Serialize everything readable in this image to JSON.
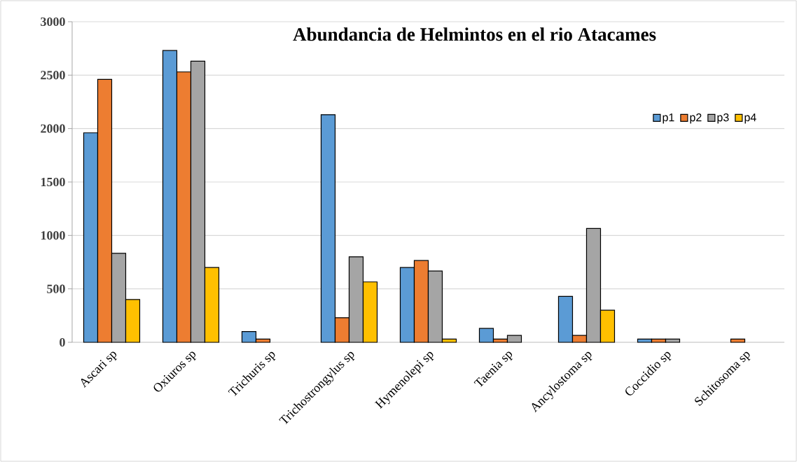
{
  "chart_data": {
    "type": "bar",
    "title": "Abundancia de Helmintos en el rio Atacames",
    "categories": [
      "Ascari sp",
      "Oxiuros sp",
      "Trichuris sp",
      "Trichostrongylus sp",
      "Hymenolepi sp",
      "Taenia sp",
      "Ancylostoma sp",
      "Coccidio sp",
      "Schitosoma sp"
    ],
    "series": [
      {
        "name": "p1",
        "color": "#5b9bd5",
        "values": [
          1960,
          2730,
          100,
          2130,
          700,
          130,
          430,
          30,
          null
        ]
      },
      {
        "name": "p2",
        "color": "#ed7d31",
        "values": [
          2460,
          2530,
          30,
          230,
          765,
          30,
          65,
          30,
          30
        ]
      },
      {
        "name": "p3",
        "color": "#a5a5a5",
        "values": [
          833,
          2630,
          null,
          800,
          667,
          65,
          1065,
          30,
          null
        ]
      },
      {
        "name": "p4",
        "color": "#ffc000",
        "values": [
          400,
          700,
          null,
          565,
          30,
          null,
          300,
          null,
          null
        ]
      }
    ],
    "ylim": [
      0,
      3000
    ],
    "yticks": [
      0,
      500,
      1000,
      1500,
      2000,
      2500,
      3000
    ],
    "grid": "y",
    "legend": "top right"
  }
}
